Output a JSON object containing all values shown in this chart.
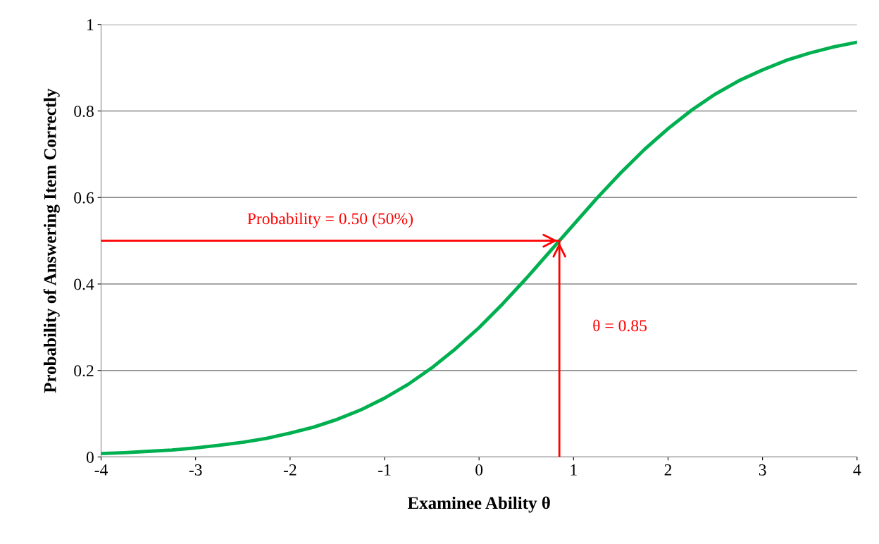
{
  "chart_data": {
    "type": "line",
    "xlabel": "Examinee Ability θ",
    "ylabel": "Probability of Answering Item Correctly",
    "x": [
      -4,
      -3.75,
      -3.5,
      -3.25,
      -3,
      -2.75,
      -2.5,
      -2.25,
      -2,
      -1.75,
      -1.5,
      -1.25,
      -1,
      -0.75,
      -0.5,
      -0.25,
      0,
      0.25,
      0.5,
      0.75,
      1,
      1.25,
      1.5,
      1.75,
      2,
      2.25,
      2.5,
      2.75,
      3,
      3.25,
      3.5,
      3.75,
      4
    ],
    "series": [
      {
        "color": "#00b050",
        "values": [
          0.008,
          0.01,
          0.013,
          0.016,
          0.021,
          0.027,
          0.034,
          0.043,
          0.055,
          0.069,
          0.087,
          0.109,
          0.136,
          0.168,
          0.206,
          0.25,
          0.299,
          0.354,
          0.413,
          0.475,
          0.537,
          0.599,
          0.657,
          0.711,
          0.759,
          0.802,
          0.839,
          0.87,
          0.895,
          0.917,
          0.934,
          0.948,
          0.959
        ]
      }
    ],
    "xlim": [
      -4,
      4
    ],
    "xticks": [
      -4,
      -3,
      -2,
      -1,
      0,
      1,
      2,
      3,
      4
    ],
    "ylim": [
      0,
      1
    ],
    "yticks": [
      0,
      0.2,
      0.4,
      0.6,
      0.8,
      1
    ],
    "grid": "y",
    "marker": "none",
    "line_style": "solid",
    "ref_lines": [
      {
        "axis": "y",
        "value": 0.5,
        "label": "Probability = 0.50 (50%)",
        "color": "#ff0000"
      },
      {
        "axis": "x",
        "value": 0.85,
        "label": "θ = 0.85",
        "color": "#ff0000"
      }
    ]
  }
}
